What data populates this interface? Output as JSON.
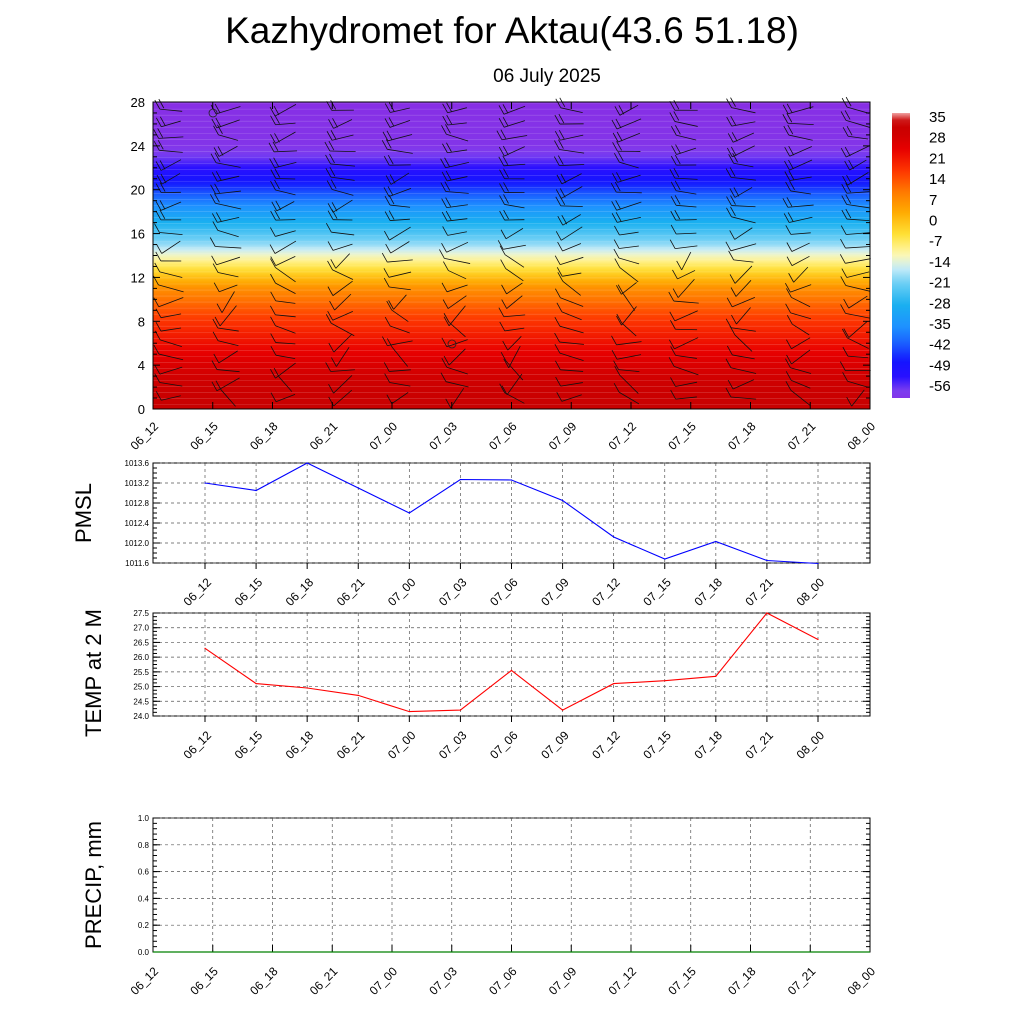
{
  "title": "Kazhydromet for Aktau(43.6 51.18)",
  "subtitle": "06 July 2025",
  "chart_data": [
    {
      "type": "heatmap",
      "x_ticks": [
        "06_12",
        "06_15",
        "06_18",
        "06_21",
        "07_00",
        "07_03",
        "07_06",
        "07_09",
        "07_12",
        "07_15",
        "07_18",
        "07_21",
        "08_00"
      ],
      "y_ticks": [
        "0",
        "4",
        "8",
        "12",
        "16",
        "20",
        "24",
        "28"
      ],
      "ylim": [
        0,
        28
      ],
      "colorbar_labels": [
        "35",
        "28",
        "21",
        "14",
        "7",
        "0",
        "-7",
        "-14",
        "-21",
        "-28",
        "-35",
        "-42",
        "-49",
        "-56"
      ],
      "colors": {
        "hot": "#cc0000",
        "warm": "#ff7a00",
        "neutral": "#fff8b0",
        "cool": "#1ab0f0",
        "cold": "#1010ff",
        "top": "#8a2be2"
      },
      "temperature_profile": [
        {
          "height": 0,
          "value": 35
        },
        {
          "height": 4,
          "value": 28
        },
        {
          "height": 8,
          "value": 18
        },
        {
          "height": 11,
          "value": 7
        },
        {
          "height": 13.5,
          "value": -10
        },
        {
          "height": 15,
          "value": -20
        },
        {
          "height": 18,
          "value": -35
        },
        {
          "height": 20.5,
          "value": -49
        },
        {
          "height": 22,
          "value": -56
        },
        {
          "height": 24,
          "value": -63
        },
        {
          "height": 28,
          "value": -65
        }
      ],
      "grid": false
    },
    {
      "type": "line",
      "ylabel": "PMSL",
      "x": [
        "06_12",
        "06_15",
        "06_18",
        "06_21",
        "07_00",
        "07_03",
        "07_06",
        "07_09",
        "07_12",
        "07_15",
        "07_18",
        "07_21",
        "08_00"
      ],
      "values": [
        1013.2,
        1013.05,
        1013.6,
        1013.1,
        1012.6,
        1013.27,
        1013.26,
        1012.85,
        1012.12,
        1011.68,
        1012.03,
        1011.65,
        1011.59
      ],
      "y_ticks": [
        "1011.6",
        "1012.0",
        "1012.4",
        "1012.8",
        "1013.2",
        "1013.6"
      ],
      "ylim": [
        1011.6,
        1013.6
      ],
      "color": "#0000ff",
      "grid": true
    },
    {
      "type": "line",
      "ylabel": "TEMP at 2 M",
      "x": [
        "06_12",
        "06_15",
        "06_18",
        "06_21",
        "07_00",
        "07_03",
        "07_06",
        "07_09",
        "07_12",
        "07_15",
        "07_18",
        "07_21",
        "08_00"
      ],
      "values": [
        26.3,
        25.1,
        24.95,
        24.7,
        24.15,
        24.2,
        25.55,
        24.2,
        25.1,
        25.2,
        25.35,
        27.5,
        26.6
      ],
      "y_ticks": [
        "24.0",
        "24.5",
        "25.0",
        "25.5",
        "26.0",
        "26.5",
        "27.0",
        "27.5"
      ],
      "ylim": [
        24.0,
        27.5
      ],
      "color": "#ff0000",
      "grid": true
    },
    {
      "type": "line",
      "ylabel": "PRECIP, mm",
      "x": [
        "06_12",
        "06_15",
        "06_18",
        "06_21",
        "07_00",
        "07_03",
        "07_06",
        "07_09",
        "07_12",
        "07_15",
        "07_18",
        "07_21",
        "08_00"
      ],
      "values": [
        0,
        0,
        0,
        0,
        0,
        0,
        0,
        0,
        0,
        0,
        0,
        0,
        0
      ],
      "y_ticks": [
        "0.0",
        "0.2",
        "0.4",
        "0.6",
        "0.8",
        "1.0"
      ],
      "ylim": [
        0,
        1.0
      ],
      "color": "#008000",
      "grid": true
    }
  ]
}
